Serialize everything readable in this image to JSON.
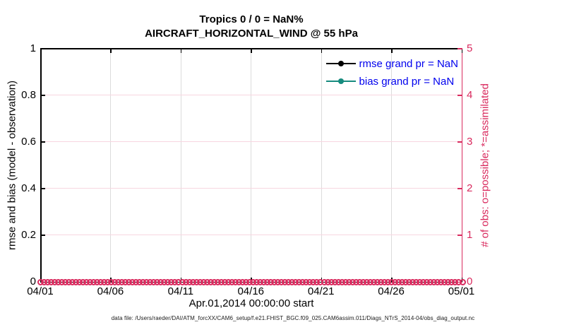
{
  "figure": {
    "title_line1": "Tropics 0 / 0 = NaN%",
    "title_line2": "AIRCRAFT_HORIZONTAL_WIND @ 55 hPa",
    "footer": "data file: /Users/raeder/DAI/ATM_forcXX/CAM6_setup/f.e21.FHIST_BGC.f09_025.CAM6assim.011/Diags_NTrS_2014-04/obs_diag_output.nc"
  },
  "colors": {
    "obs_magenta": "#D92A5E",
    "pink_gridline": "#F7D6E0",
    "gray_gridline": "#DCDCDC",
    "bias_teal": "#178B7E",
    "rmse_black": "#000000",
    "legend_text_blue": "#0000EE"
  },
  "axes": {
    "left": {
      "label": "rmse and bias (model - observation)",
      "ticks": [
        "0",
        "0.2",
        "0.4",
        "0.6",
        "0.8",
        "1"
      ],
      "range": [
        0,
        1
      ],
      "color": "#000000"
    },
    "right": {
      "label": "# of obs: o=possible; *=assimilated",
      "ticks": [
        "0",
        "1",
        "2",
        "3",
        "4",
        "5"
      ],
      "range": [
        0,
        5
      ],
      "color": "#D92A5E"
    },
    "x": {
      "label": "Apr.01,2014 00:00:00 start",
      "ticks": [
        "04/01",
        "04/06",
        "04/11",
        "04/16",
        "04/21",
        "04/26",
        "05/01"
      ]
    }
  },
  "legend": [
    {
      "label": "rmse grand pr = NaN",
      "color": "#000000"
    },
    {
      "label": "bias grand pr = NaN",
      "color": "#178B7E"
    }
  ],
  "chart_data": {
    "type": "line",
    "title": "Tropics 0 / 0 = NaN%",
    "subtitle": "AIRCRAFT_HORIZONTAL_WIND @ 55 hPa",
    "xlabel": "Apr.01,2014 00:00:00 start",
    "x_tick_labels": [
      "04/01",
      "04/06",
      "04/11",
      "04/16",
      "04/21",
      "04/26",
      "05/01"
    ],
    "left_ylabel": "rmse and bias (model - observation)",
    "left_ylim": [
      0,
      1
    ],
    "right_ylabel": "# of obs: o=possible; *=assimilated",
    "right_ylim": [
      0,
      5
    ],
    "grid": "on",
    "legend_position": "top-right-inside",
    "series": [
      {
        "name": "rmse",
        "axis": "left",
        "color": "#000000",
        "values": "NaN (no line drawn, 0 of 0 obs)"
      },
      {
        "name": "bias",
        "axis": "left",
        "color": "#178B7E",
        "values": "NaN (no line drawn, 0 of 0 obs)"
      },
      {
        "name": "obs possible (o markers)",
        "axis": "right",
        "color": "#D92A5E",
        "marker": "o",
        "n_points": 120,
        "constant_value": 0
      },
      {
        "name": "obs assimilated (* markers)",
        "axis": "right",
        "color": "#D92A5E",
        "marker": "*",
        "n_points": 120,
        "constant_value": 0
      }
    ]
  }
}
